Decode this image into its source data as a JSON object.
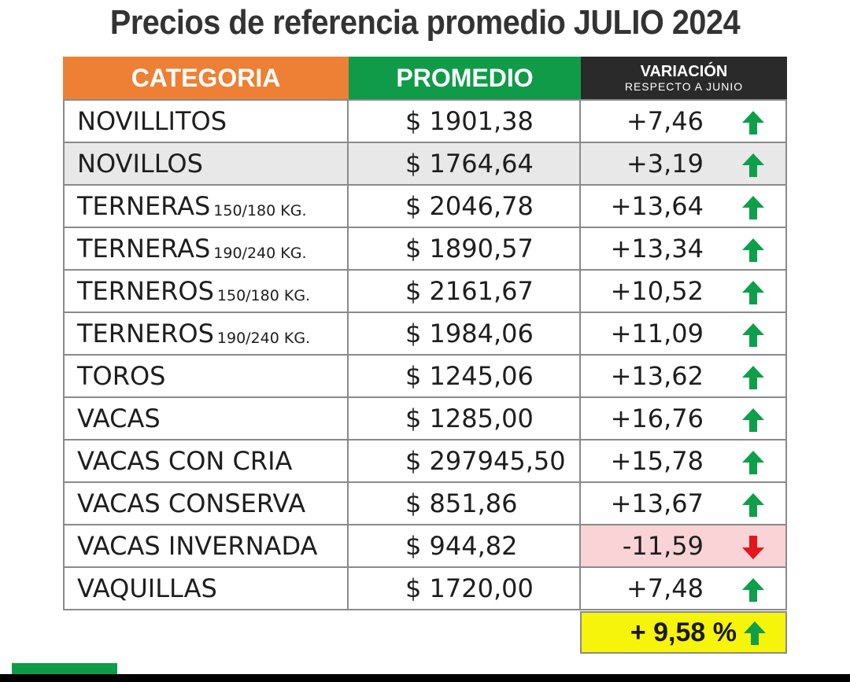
{
  "title": "Precios de referencia promedio JULIO 2024",
  "header": {
    "categoria": "CATEGORIA",
    "promedio": "PROMEDIO",
    "variacion": "VARIACIÓN",
    "variacion_sub": "RESPECTO A JUNIO"
  },
  "rows": [
    {
      "name": "NOVILLITOS",
      "sub": "",
      "price": "$ 1901,38",
      "change": "+7,46",
      "direction": "up"
    },
    {
      "name": "NOVILLOS",
      "sub": "",
      "price": "$ 1764,64",
      "change": "+3,19",
      "direction": "up"
    },
    {
      "name": "TERNERAS",
      "sub": "150/180 KG.",
      "price": "$ 2046,78",
      "change": "+13,64",
      "direction": "up"
    },
    {
      "name": "TERNERAS",
      "sub": "190/240 KG.",
      "price": "$ 1890,57",
      "change": "+13,34",
      "direction": "up"
    },
    {
      "name": "TERNEROS",
      "sub": "150/180 KG.",
      "price": "$ 2161,67",
      "change": "+10,52",
      "direction": "up"
    },
    {
      "name": "TERNEROS",
      "sub": "190/240 KG.",
      "price": "$ 1984,06",
      "change": "+11,09",
      "direction": "up"
    },
    {
      "name": "TOROS",
      "sub": "",
      "price": "$ 1245,06",
      "change": "+13,62",
      "direction": "up"
    },
    {
      "name": "VACAS",
      "sub": "",
      "price": "$ 1285,00",
      "change": "+16,76",
      "direction": "up"
    },
    {
      "name": "VACAS CON CRIA",
      "sub": "",
      "price": "$ 297945,50",
      "change": "+15,78",
      "direction": "up"
    },
    {
      "name": "VACAS CONSERVA",
      "sub": "",
      "price": "$ 851,86",
      "change": "+13,67",
      "direction": "up"
    },
    {
      "name": "VACAS INVERNADA",
      "sub": "",
      "price": "$ 944,82",
      "change": "-11,59",
      "direction": "down"
    },
    {
      "name": "VAQUILLAS",
      "sub": "",
      "price": "$ 1720,00",
      "change": "+7,48",
      "direction": "up"
    }
  ],
  "total": {
    "value": "+ 9,58 %",
    "direction": "up"
  },
  "colors": {
    "categoria_header": "#ee8035",
    "promedio_header": "#109b49",
    "variacion_header": "#2a2a2a",
    "up_arrow": "#0e9f4b",
    "down_arrow": "#e3161c",
    "negative_bg": "#f9d3d5",
    "total_bg": "#f7f40b"
  }
}
